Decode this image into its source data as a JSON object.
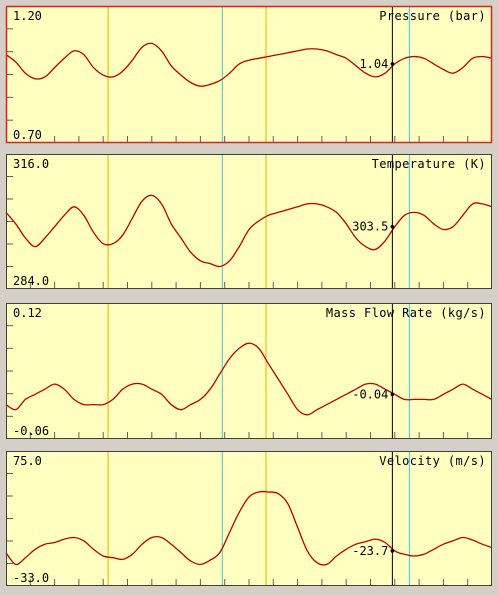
{
  "colors": {
    "background": "#ffffc0",
    "window": "#d4d0c8",
    "trace": "#c00000",
    "selected_border": "#e02020",
    "frame": "#404040",
    "marker_yellow": "#e8b000",
    "marker_cyan": "#40c8e0",
    "cursor": "#000000"
  },
  "panels": [
    {
      "title": "Pressure (bar)",
      "y_max_label": "1.20",
      "y_min_label": "0.70",
      "cursor_label": "1.04",
      "selected": true,
      "chart_data": {
        "type": "line",
        "ylim": [
          0.7,
          1.2
        ],
        "x": [
          0,
          2,
          4,
          6,
          8,
          10,
          12,
          14,
          16,
          18,
          20,
          22,
          24,
          26,
          28,
          30,
          32,
          34,
          36,
          38,
          40,
          42,
          44,
          46,
          48,
          50,
          52,
          54,
          56,
          58,
          60,
          62,
          64,
          66,
          68,
          70,
          72,
          74,
          76,
          78,
          80,
          82,
          84,
          86,
          88,
          90,
          92,
          94,
          96,
          98,
          100
        ],
        "values": [
          1.1,
          1.06,
          1.0,
          0.97,
          0.98,
          1.03,
          1.08,
          1.12,
          1.1,
          1.03,
          0.99,
          0.98,
          1.01,
          1.07,
          1.14,
          1.16,
          1.12,
          1.04,
          0.99,
          0.95,
          0.93,
          0.94,
          0.96,
          1.0,
          1.05,
          1.07,
          1.08,
          1.09,
          1.1,
          1.11,
          1.12,
          1.13,
          1.13,
          1.12,
          1.1,
          1.08,
          1.04,
          1.0,
          0.98,
          1.0,
          1.05,
          1.08,
          1.09,
          1.08,
          1.05,
          1.02,
          1.0,
          1.03,
          1.08,
          1.09,
          1.08
        ]
      }
    },
    {
      "title": "Temperature (K)",
      "y_max_label": "316.0",
      "y_min_label": "284.0",
      "cursor_label": "303.5",
      "selected": false,
      "chart_data": {
        "type": "line",
        "ylim": [
          284.0,
          316.0
        ],
        "x": [
          0,
          2,
          4,
          6,
          8,
          10,
          12,
          14,
          16,
          18,
          20,
          22,
          24,
          26,
          28,
          30,
          32,
          34,
          36,
          38,
          40,
          42,
          44,
          46,
          48,
          50,
          52,
          54,
          56,
          58,
          60,
          62,
          64,
          66,
          68,
          70,
          72,
          74,
          76,
          78,
          80,
          82,
          84,
          86,
          88,
          90,
          92,
          94,
          96,
          98,
          100
        ],
        "values": [
          306,
          302,
          297,
          294,
          297,
          301,
          305,
          308,
          305,
          299,
          295,
          295,
          298,
          304,
          310,
          312,
          309,
          302,
          297,
          292,
          289,
          288,
          287,
          289,
          294,
          300,
          303,
          305,
          306,
          307,
          308,
          309,
          309,
          308,
          306,
          302,
          297,
          294,
          293,
          296,
          301,
          305,
          306,
          305,
          302,
          300,
          301,
          305,
          309,
          309,
          308
        ]
      }
    },
    {
      "title": "Mass Flow Rate (kg/s)",
      "y_max_label": "0.12",
      "y_min_label": "-0.06",
      "cursor_label": "-0.04",
      "selected": false,
      "chart_data": {
        "type": "line",
        "ylim": [
          -0.06,
          0.12
        ],
        "x": [
          0,
          2,
          4,
          6,
          8,
          10,
          12,
          14,
          16,
          18,
          20,
          22,
          24,
          26,
          28,
          30,
          32,
          34,
          36,
          38,
          40,
          42,
          44,
          46,
          48,
          50,
          52,
          54,
          56,
          58,
          60,
          62,
          64,
          66,
          68,
          70,
          72,
          74,
          76,
          78,
          80,
          82,
          84,
          86,
          88,
          90,
          92,
          94,
          96,
          98,
          100
        ],
        "values": [
          -0.02,
          -0.03,
          -0.01,
          0.0,
          0.01,
          0.02,
          0.01,
          -0.01,
          -0.02,
          -0.02,
          -0.02,
          -0.01,
          0.01,
          0.02,
          0.02,
          0.01,
          0.0,
          -0.02,
          -0.03,
          -0.02,
          -0.01,
          0.01,
          0.04,
          0.07,
          0.09,
          0.1,
          0.09,
          0.06,
          0.03,
          0.0,
          -0.03,
          -0.04,
          -0.03,
          -0.02,
          -0.01,
          0.0,
          0.01,
          0.02,
          0.02,
          0.01,
          0.0,
          -0.01,
          -0.01,
          -0.01,
          -0.01,
          0.0,
          0.01,
          0.02,
          0.01,
          0.0,
          -0.01
        ]
      }
    },
    {
      "title": "Velocity (m/s)",
      "y_max_label": "75.0",
      "y_min_label": "-33.0",
      "cursor_label": "-23.7",
      "selected": false,
      "chart_data": {
        "type": "line",
        "ylim": [
          -33.0,
          75.0
        ],
        "x": [
          0,
          2,
          4,
          6,
          8,
          10,
          12,
          14,
          16,
          18,
          20,
          22,
          24,
          26,
          28,
          30,
          32,
          34,
          36,
          38,
          40,
          42,
          44,
          46,
          48,
          50,
          52,
          54,
          56,
          58,
          60,
          62,
          64,
          66,
          68,
          70,
          72,
          74,
          76,
          78,
          80,
          82,
          84,
          86,
          88,
          90,
          92,
          94,
          96,
          98,
          100
        ],
        "values": [
          -10,
          -24,
          -16,
          -6,
          0,
          2,
          6,
          8,
          4,
          -6,
          -14,
          -16,
          -18,
          -12,
          0,
          8,
          8,
          0,
          -10,
          -20,
          -24,
          -19,
          -10,
          14,
          38,
          56,
          62,
          62,
          60,
          48,
          20,
          -8,
          -22,
          -24,
          -14,
          -6,
          0,
          3,
          6,
          2,
          -8,
          -12,
          -14,
          -12,
          -6,
          0,
          4,
          8,
          5,
          0,
          -4
        ]
      }
    }
  ],
  "markers": {
    "yellow": [
      21.0,
      53.5
    ],
    "cyan": [
      44.5,
      83.0
    ],
    "cursor": [
      79.5
    ]
  }
}
